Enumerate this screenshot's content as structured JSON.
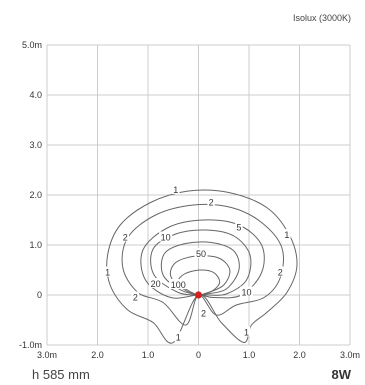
{
  "chart_data": {
    "type": "isolux",
    "title": "Isolux (3000K)",
    "x_ticks": [
      "3.0m",
      "2.0",
      "1.0",
      "0",
      "1.0",
      "2.0",
      "3.0m"
    ],
    "y_ticks": [
      "5.0m",
      "4.0",
      "3.0",
      "2.0",
      "1.0",
      "0",
      "-1.0m"
    ],
    "xlim": [
      -3,
      3
    ],
    "ylim": [
      -1,
      5
    ],
    "grid": true,
    "source_point": [
      0,
      0
    ],
    "source_color": "#d62020",
    "contours": [
      {
        "level": "1",
        "points": [
          [
            -0.5,
            -0.95
          ],
          [
            -0.9,
            -0.55
          ],
          [
            -1.4,
            -0.3
          ],
          [
            -1.75,
            0.2
          ],
          [
            -1.8,
            0.8
          ],
          [
            -1.55,
            1.4
          ],
          [
            -0.95,
            1.85
          ],
          [
            -0.2,
            2.08
          ],
          [
            0.6,
            2.05
          ],
          [
            1.35,
            1.75
          ],
          [
            1.8,
            1.2
          ],
          [
            1.95,
            0.6
          ],
          [
            1.75,
            0.05
          ],
          [
            1.35,
            -0.35
          ],
          [
            1.05,
            -0.6
          ],
          [
            0.9,
            -0.95
          ],
          [
            0.45,
            -0.55
          ],
          [
            0,
            0
          ]
        ]
      },
      {
        "level": "2",
        "points": [
          [
            -0.25,
            -0.6
          ],
          [
            -0.7,
            -0.15
          ],
          [
            -1.2,
            0.05
          ],
          [
            -1.5,
            0.55
          ],
          [
            -1.4,
            1.15
          ],
          [
            -0.85,
            1.6
          ],
          [
            -0.1,
            1.8
          ],
          [
            0.65,
            1.75
          ],
          [
            1.25,
            1.45
          ],
          [
            1.65,
            0.95
          ],
          [
            1.62,
            0.35
          ],
          [
            1.3,
            -0.05
          ],
          [
            0.75,
            -0.2
          ],
          [
            0.35,
            -0.4
          ],
          [
            0,
            0
          ]
        ]
      },
      {
        "level": "5",
        "points": [
          [
            -0.55,
            -0.05
          ],
          [
            -1.05,
            0.3
          ],
          [
            -1.1,
            0.9
          ],
          [
            -0.6,
            1.35
          ],
          [
            0.1,
            1.5
          ],
          [
            0.8,
            1.4
          ],
          [
            1.25,
            1.0
          ],
          [
            1.25,
            0.45
          ],
          [
            0.85,
            0.0
          ],
          [
            0.3,
            -0.05
          ],
          [
            0,
            0
          ]
        ]
      },
      {
        "level": "10",
        "points": [
          [
            -0.4,
            0.05
          ],
          [
            -0.88,
            0.4
          ],
          [
            -0.9,
            0.92
          ],
          [
            -0.45,
            1.22
          ],
          [
            0.15,
            1.3
          ],
          [
            0.7,
            1.18
          ],
          [
            1.02,
            0.8
          ],
          [
            0.95,
            0.3
          ],
          [
            0.55,
            0.02
          ],
          [
            0.15,
            0.0
          ],
          [
            0,
            0
          ]
        ]
      },
      {
        "level": "20",
        "points": [
          [
            -0.35,
            0.1
          ],
          [
            -0.7,
            0.4
          ],
          [
            -0.68,
            0.82
          ],
          [
            -0.3,
            1.02
          ],
          [
            0.25,
            1.05
          ],
          [
            0.7,
            0.88
          ],
          [
            0.8,
            0.5
          ],
          [
            0.55,
            0.12
          ],
          [
            0.15,
            0.02
          ],
          [
            0,
            0
          ]
        ]
      },
      {
        "level": "50",
        "points": [
          [
            -0.3,
            0.12
          ],
          [
            -0.55,
            0.38
          ],
          [
            -0.45,
            0.65
          ],
          [
            -0.05,
            0.78
          ],
          [
            0.4,
            0.74
          ],
          [
            0.62,
            0.5
          ],
          [
            0.5,
            0.2
          ],
          [
            0.2,
            0.05
          ],
          [
            0,
            0
          ]
        ]
      },
      {
        "level": "100",
        "points": [
          [
            -0.22,
            0.1
          ],
          [
            -0.4,
            0.26
          ],
          [
            -0.28,
            0.42
          ],
          [
            0.02,
            0.5
          ],
          [
            0.3,
            0.45
          ],
          [
            0.42,
            0.26
          ],
          [
            0.3,
            0.1
          ],
          [
            0.1,
            0.02
          ],
          [
            0,
            0
          ]
        ]
      }
    ],
    "contour_labels": [
      {
        "text": "1",
        "x": -0.45,
        "y": 2.1
      },
      {
        "text": "2",
        "x": 0.25,
        "y": 1.85
      },
      {
        "text": "1",
        "x": 1.75,
        "y": 1.2
      },
      {
        "text": "2",
        "x": -1.45,
        "y": 1.15
      },
      {
        "text": "10",
        "x": -0.65,
        "y": 1.15
      },
      {
        "text": "5",
        "x": 0.8,
        "y": 1.35
      },
      {
        "text": "50",
        "x": 0.05,
        "y": 0.82
      },
      {
        "text": "1",
        "x": -1.8,
        "y": 0.45
      },
      {
        "text": "2",
        "x": 1.62,
        "y": 0.45
      },
      {
        "text": "20",
        "x": -0.85,
        "y": 0.22
      },
      {
        "text": "100",
        "x": -0.4,
        "y": 0.2
      },
      {
        "text": "10",
        "x": 0.95,
        "y": 0.05
      },
      {
        "text": "2",
        "x": -1.25,
        "y": -0.05
      },
      {
        "text": "2",
        "x": 0.1,
        "y": -0.37
      },
      {
        "text": "1",
        "x": 0.95,
        "y": -0.75
      },
      {
        "text": "1",
        "x": -0.4,
        "y": -0.85
      }
    ],
    "contour_color": "#666666",
    "grid_color": "#cccccc"
  },
  "footer": {
    "height": "h 585 mm",
    "power": "8W"
  }
}
